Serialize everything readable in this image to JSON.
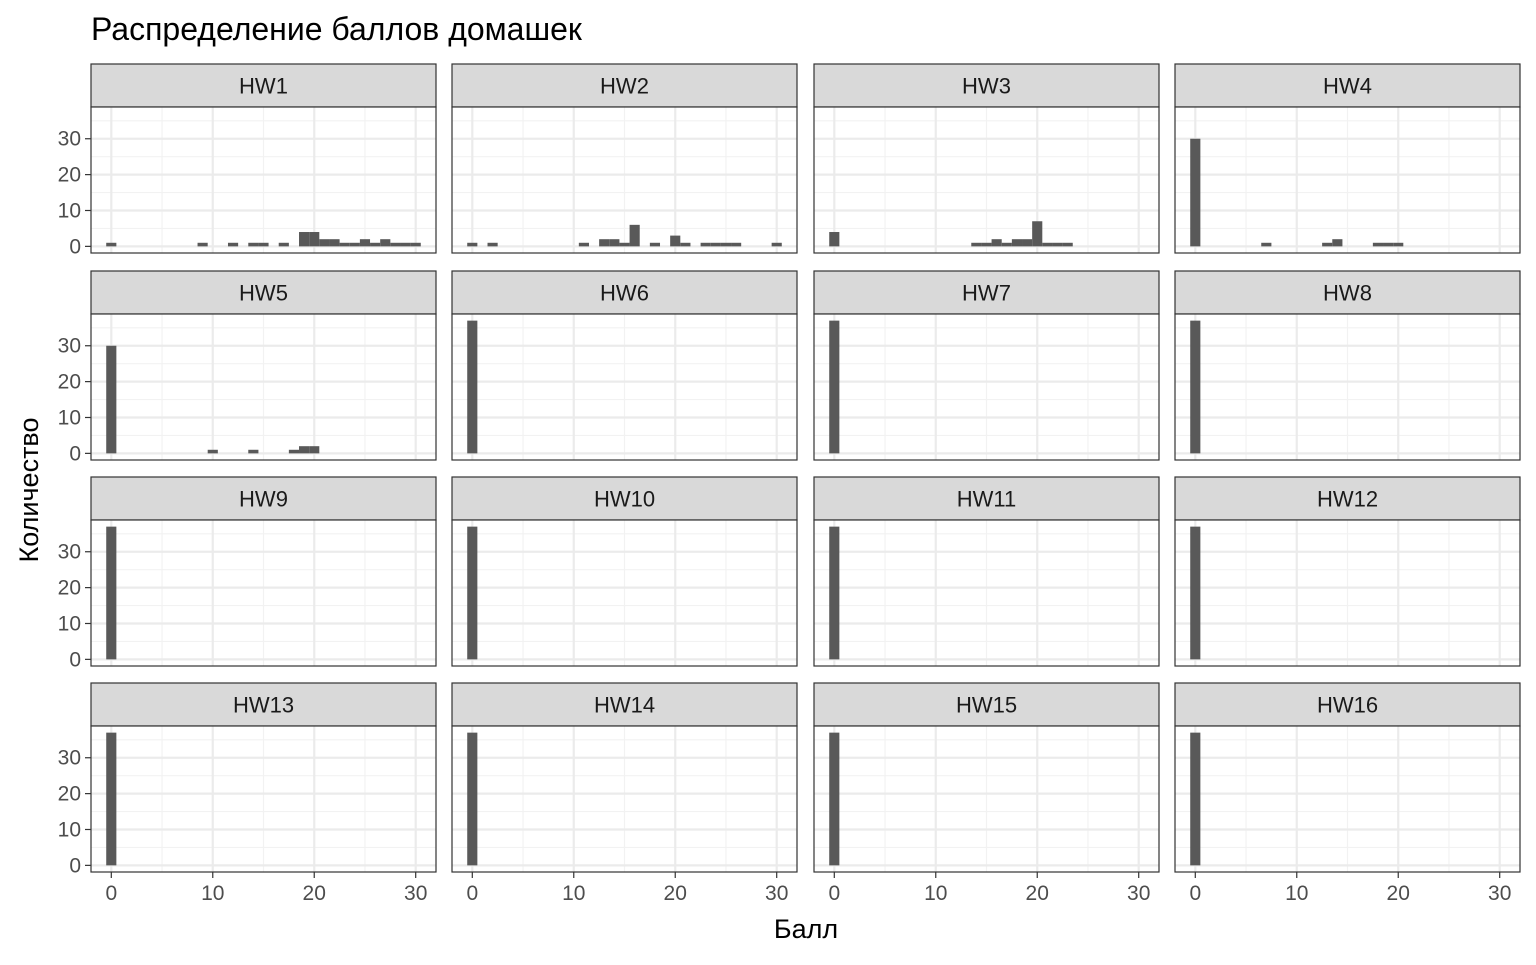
{
  "chart_data": {
    "type": "bar",
    "title": "Распределение баллов домашек",
    "xlabel": "Балл",
    "ylabel": "Количество",
    "xlim": [
      -2,
      32
    ],
    "ylim": [
      0,
      37
    ],
    "x_ticks": [
      0,
      10,
      20,
      30
    ],
    "y_ticks": [
      0,
      10,
      20,
      30
    ],
    "bin_width": 1,
    "grid": true,
    "colors": {
      "bar": "#595959",
      "strip_fill": "#d9d9d9",
      "panel_border": "#333333",
      "grid": "#ebebeb",
      "grid_minor": "#f2f2f2",
      "tick_text": "#4d4d4d",
      "text": "#1a1a1a"
    },
    "panels": [
      {
        "name": "HW1",
        "bins": [
          [
            0,
            1
          ],
          [
            9,
            1
          ],
          [
            12,
            1
          ],
          [
            14,
            1
          ],
          [
            15,
            1
          ],
          [
            17,
            1
          ],
          [
            19,
            4
          ],
          [
            20,
            4
          ],
          [
            21,
            2
          ],
          [
            22,
            2
          ],
          [
            23,
            1
          ],
          [
            24,
            1
          ],
          [
            25,
            2
          ],
          [
            26,
            1
          ],
          [
            27,
            2
          ],
          [
            28,
            1
          ],
          [
            29,
            1
          ],
          [
            30,
            1
          ]
        ]
      },
      {
        "name": "HW2",
        "bins": [
          [
            0,
            1
          ],
          [
            2,
            1
          ],
          [
            11,
            1
          ],
          [
            13,
            2
          ],
          [
            14,
            2
          ],
          [
            15,
            1
          ],
          [
            16,
            6
          ],
          [
            18,
            1
          ],
          [
            20,
            3
          ],
          [
            21,
            1
          ],
          [
            23,
            1
          ],
          [
            24,
            1
          ],
          [
            25,
            1
          ],
          [
            26,
            1
          ],
          [
            30,
            1
          ]
        ]
      },
      {
        "name": "HW3",
        "bins": [
          [
            0,
            4
          ],
          [
            14,
            1
          ],
          [
            15,
            1
          ],
          [
            16,
            2
          ],
          [
            17,
            1
          ],
          [
            18,
            2
          ],
          [
            19,
            2
          ],
          [
            20,
            7
          ],
          [
            21,
            1
          ],
          [
            22,
            1
          ],
          [
            23,
            1
          ]
        ]
      },
      {
        "name": "HW4",
        "bins": [
          [
            0,
            30
          ],
          [
            7,
            1
          ],
          [
            13,
            1
          ],
          [
            14,
            2
          ],
          [
            18,
            1
          ],
          [
            19,
            1
          ],
          [
            20,
            1
          ]
        ]
      },
      {
        "name": "HW5",
        "bins": [
          [
            0,
            30
          ],
          [
            10,
            1
          ],
          [
            14,
            1
          ],
          [
            18,
            1
          ],
          [
            19,
            2
          ],
          [
            20,
            2
          ]
        ]
      },
      {
        "name": "HW6",
        "bins": [
          [
            0,
            37
          ]
        ]
      },
      {
        "name": "HW7",
        "bins": [
          [
            0,
            37
          ]
        ]
      },
      {
        "name": "HW8",
        "bins": [
          [
            0,
            37
          ]
        ]
      },
      {
        "name": "HW9",
        "bins": [
          [
            0,
            37
          ]
        ]
      },
      {
        "name": "HW10",
        "bins": [
          [
            0,
            37
          ]
        ]
      },
      {
        "name": "HW11",
        "bins": [
          [
            0,
            37
          ]
        ]
      },
      {
        "name": "HW12",
        "bins": [
          [
            0,
            37
          ]
        ]
      },
      {
        "name": "HW13",
        "bins": [
          [
            0,
            37
          ]
        ]
      },
      {
        "name": "HW14",
        "bins": [
          [
            0,
            37
          ]
        ]
      },
      {
        "name": "HW15",
        "bins": [
          [
            0,
            37
          ]
        ]
      },
      {
        "name": "HW16",
        "bins": [
          [
            0,
            37
          ]
        ]
      }
    ]
  }
}
